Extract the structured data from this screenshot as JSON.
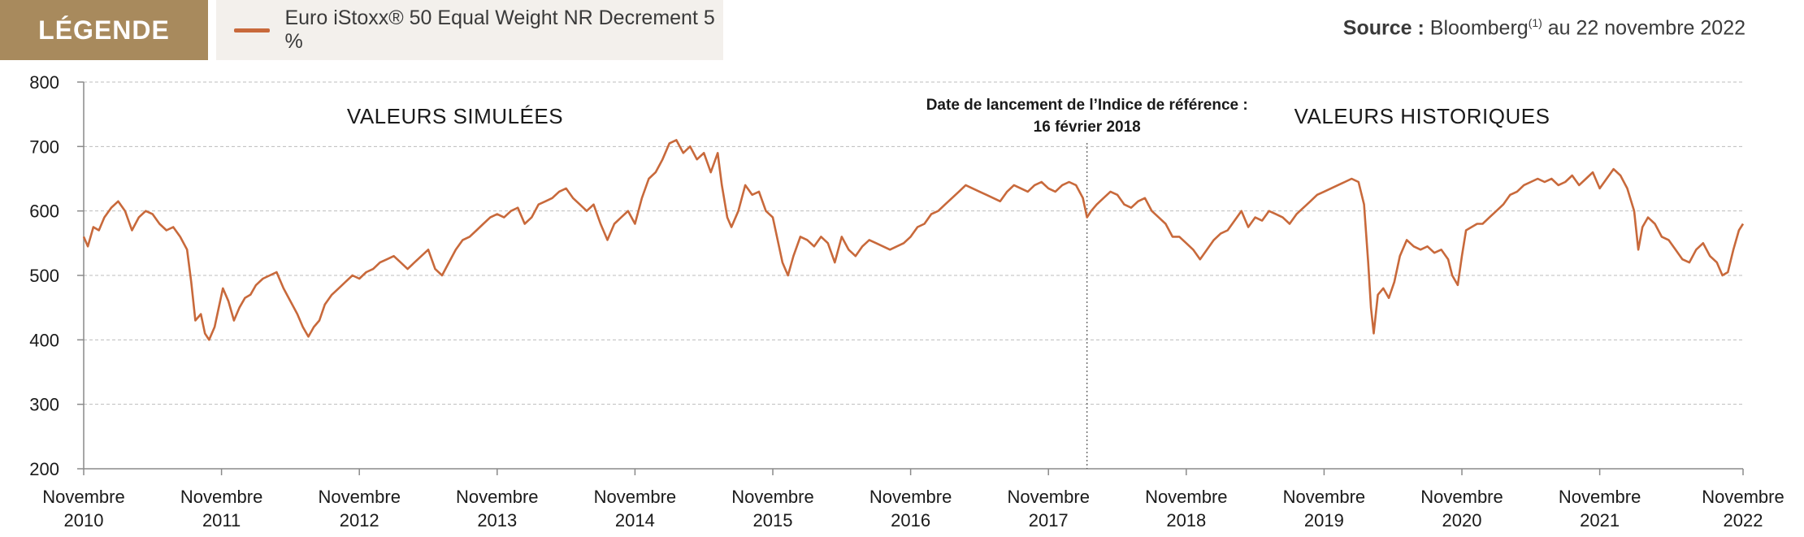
{
  "legend": {
    "tag": "LÉGENDE",
    "series_label": "Euro iStoxx® 50 Equal Weight NR Decrement 5 %",
    "series_color": "#c8693b",
    "tag_color": "#a88a5d"
  },
  "source": {
    "prefix": "Source :",
    "text": "Bloomberg",
    "footnote": "(1)",
    "suffix": " au 22 novembre 2022"
  },
  "chart_data": {
    "type": "line",
    "ylim": [
      200,
      800
    ],
    "yticks": [
      200,
      300,
      400,
      500,
      600,
      700,
      800
    ],
    "xlim": [
      2010.85,
      2022.89
    ],
    "xticks": [
      {
        "value": 2010.85,
        "line1": "Novembre",
        "line2": "2010"
      },
      {
        "value": 2011.85,
        "line1": "Novembre",
        "line2": "2011"
      },
      {
        "value": 2012.85,
        "line1": "Novembre",
        "line2": "2012"
      },
      {
        "value": 2013.85,
        "line1": "Novembre",
        "line2": "2013"
      },
      {
        "value": 2014.85,
        "line1": "Novembre",
        "line2": "2014"
      },
      {
        "value": 2015.85,
        "line1": "Novembre",
        "line2": "2015"
      },
      {
        "value": 2016.85,
        "line1": "Novembre",
        "line2": "2016"
      },
      {
        "value": 2017.85,
        "line1": "Novembre",
        "line2": "2017"
      },
      {
        "value": 2018.85,
        "line1": "Novembre",
        "line2": "2018"
      },
      {
        "value": 2019.85,
        "line1": "Novembre",
        "line2": "2019"
      },
      {
        "value": 2020.85,
        "line1": "Novembre",
        "line2": "2020"
      },
      {
        "value": 2021.85,
        "line1": "Novembre",
        "line2": "2021"
      },
      {
        "value": 2022.89,
        "line1": "Novembre",
        "line2": "2022"
      }
    ],
    "grid": true,
    "annotations": {
      "simulated": "VALEURS SIMULÉES",
      "historical": "VALEURS HISTORIQUES",
      "launch_line1": "Date de lancement de l’Indice de référence :",
      "launch_line2": "16 février 2018",
      "launch_x": 2018.13
    },
    "series": [
      {
        "name": "Euro iStoxx® 50 Equal Weight NR Decrement 5 %",
        "color": "#c8693b",
        "points": [
          [
            2010.85,
            560
          ],
          [
            2010.88,
            545
          ],
          [
            2010.92,
            575
          ],
          [
            2010.96,
            570
          ],
          [
            2011.0,
            590
          ],
          [
            2011.05,
            605
          ],
          [
            2011.1,
            615
          ],
          [
            2011.15,
            600
          ],
          [
            2011.2,
            570
          ],
          [
            2011.25,
            590
          ],
          [
            2011.3,
            600
          ],
          [
            2011.35,
            595
          ],
          [
            2011.4,
            580
          ],
          [
            2011.45,
            570
          ],
          [
            2011.5,
            575
          ],
          [
            2011.55,
            560
          ],
          [
            2011.6,
            540
          ],
          [
            2011.63,
            490
          ],
          [
            2011.66,
            430
          ],
          [
            2011.7,
            440
          ],
          [
            2011.73,
            410
          ],
          [
            2011.76,
            400
          ],
          [
            2011.8,
            420
          ],
          [
            2011.83,
            450
          ],
          [
            2011.86,
            480
          ],
          [
            2011.9,
            460
          ],
          [
            2011.94,
            430
          ],
          [
            2011.98,
            450
          ],
          [
            2012.02,
            465
          ],
          [
            2012.06,
            470
          ],
          [
            2012.1,
            485
          ],
          [
            2012.15,
            495
          ],
          [
            2012.2,
            500
          ],
          [
            2012.25,
            505
          ],
          [
            2012.3,
            480
          ],
          [
            2012.35,
            460
          ],
          [
            2012.4,
            440
          ],
          [
            2012.44,
            420
          ],
          [
            2012.48,
            405
          ],
          [
            2012.52,
            420
          ],
          [
            2012.56,
            430
          ],
          [
            2012.6,
            455
          ],
          [
            2012.65,
            470
          ],
          [
            2012.7,
            480
          ],
          [
            2012.75,
            490
          ],
          [
            2012.8,
            500
          ],
          [
            2012.85,
            495
          ],
          [
            2012.9,
            505
          ],
          [
            2012.95,
            510
          ],
          [
            2013.0,
            520
          ],
          [
            2013.05,
            525
          ],
          [
            2013.1,
            530
          ],
          [
            2013.15,
            520
          ],
          [
            2013.2,
            510
          ],
          [
            2013.25,
            520
          ],
          [
            2013.3,
            530
          ],
          [
            2013.35,
            540
          ],
          [
            2013.4,
            510
          ],
          [
            2013.45,
            500
          ],
          [
            2013.5,
            520
          ],
          [
            2013.55,
            540
          ],
          [
            2013.6,
            555
          ],
          [
            2013.65,
            560
          ],
          [
            2013.7,
            570
          ],
          [
            2013.75,
            580
          ],
          [
            2013.8,
            590
          ],
          [
            2013.85,
            595
          ],
          [
            2013.9,
            590
          ],
          [
            2013.95,
            600
          ],
          [
            2014.0,
            605
          ],
          [
            2014.05,
            580
          ],
          [
            2014.1,
            590
          ],
          [
            2014.15,
            610
          ],
          [
            2014.2,
            615
          ],
          [
            2014.25,
            620
          ],
          [
            2014.3,
            630
          ],
          [
            2014.35,
            635
          ],
          [
            2014.4,
            620
          ],
          [
            2014.45,
            610
          ],
          [
            2014.5,
            600
          ],
          [
            2014.55,
            610
          ],
          [
            2014.6,
            580
          ],
          [
            2014.65,
            555
          ],
          [
            2014.7,
            580
          ],
          [
            2014.75,
            590
          ],
          [
            2014.8,
            600
          ],
          [
            2014.85,
            580
          ],
          [
            2014.9,
            620
          ],
          [
            2014.95,
            650
          ],
          [
            2015.0,
            660
          ],
          [
            2015.05,
            680
          ],
          [
            2015.1,
            705
          ],
          [
            2015.15,
            710
          ],
          [
            2015.2,
            690
          ],
          [
            2015.25,
            700
          ],
          [
            2015.3,
            680
          ],
          [
            2015.35,
            690
          ],
          [
            2015.4,
            660
          ],
          [
            2015.45,
            690
          ],
          [
            2015.48,
            640
          ],
          [
            2015.52,
            590
          ],
          [
            2015.55,
            575
          ],
          [
            2015.6,
            600
          ],
          [
            2015.65,
            640
          ],
          [
            2015.7,
            625
          ],
          [
            2015.75,
            630
          ],
          [
            2015.8,
            600
          ],
          [
            2015.85,
            590
          ],
          [
            2015.88,
            560
          ],
          [
            2015.92,
            520
          ],
          [
            2015.96,
            500
          ],
          [
            2016.0,
            530
          ],
          [
            2016.05,
            560
          ],
          [
            2016.1,
            555
          ],
          [
            2016.15,
            545
          ],
          [
            2016.2,
            560
          ],
          [
            2016.25,
            550
          ],
          [
            2016.3,
            520
          ],
          [
            2016.35,
            560
          ],
          [
            2016.4,
            540
          ],
          [
            2016.45,
            530
          ],
          [
            2016.5,
            545
          ],
          [
            2016.55,
            555
          ],
          [
            2016.6,
            550
          ],
          [
            2016.65,
            545
          ],
          [
            2016.7,
            540
          ],
          [
            2016.75,
            545
          ],
          [
            2016.8,
            550
          ],
          [
            2016.85,
            560
          ],
          [
            2016.9,
            575
          ],
          [
            2016.95,
            580
          ],
          [
            2017.0,
            595
          ],
          [
            2017.05,
            600
          ],
          [
            2017.1,
            610
          ],
          [
            2017.15,
            620
          ],
          [
            2017.2,
            630
          ],
          [
            2017.25,
            640
          ],
          [
            2017.3,
            635
          ],
          [
            2017.35,
            630
          ],
          [
            2017.4,
            625
          ],
          [
            2017.45,
            620
          ],
          [
            2017.5,
            615
          ],
          [
            2017.55,
            630
          ],
          [
            2017.6,
            640
          ],
          [
            2017.65,
            635
          ],
          [
            2017.7,
            630
          ],
          [
            2017.75,
            640
          ],
          [
            2017.8,
            645
          ],
          [
            2017.85,
            635
          ],
          [
            2017.9,
            630
          ],
          [
            2017.95,
            640
          ],
          [
            2018.0,
            645
          ],
          [
            2018.05,
            640
          ],
          [
            2018.1,
            620
          ],
          [
            2018.13,
            590
          ],
          [
            2018.16,
            600
          ],
          [
            2018.2,
            610
          ],
          [
            2018.25,
            620
          ],
          [
            2018.3,
            630
          ],
          [
            2018.35,
            625
          ],
          [
            2018.4,
            610
          ],
          [
            2018.45,
            605
          ],
          [
            2018.5,
            615
          ],
          [
            2018.55,
            620
          ],
          [
            2018.6,
            600
          ],
          [
            2018.65,
            590
          ],
          [
            2018.7,
            580
          ],
          [
            2018.75,
            560
          ],
          [
            2018.8,
            560
          ],
          [
            2018.85,
            550
          ],
          [
            2018.9,
            540
          ],
          [
            2018.95,
            525
          ],
          [
            2019.0,
            540
          ],
          [
            2019.05,
            555
          ],
          [
            2019.1,
            565
          ],
          [
            2019.15,
            570
          ],
          [
            2019.2,
            585
          ],
          [
            2019.25,
            600
          ],
          [
            2019.3,
            575
          ],
          [
            2019.35,
            590
          ],
          [
            2019.4,
            585
          ],
          [
            2019.45,
            600
          ],
          [
            2019.5,
            595
          ],
          [
            2019.55,
            590
          ],
          [
            2019.6,
            580
          ],
          [
            2019.65,
            595
          ],
          [
            2019.7,
            605
          ],
          [
            2019.75,
            615
          ],
          [
            2019.8,
            625
          ],
          [
            2019.85,
            630
          ],
          [
            2019.9,
            635
          ],
          [
            2019.95,
            640
          ],
          [
            2020.0,
            645
          ],
          [
            2020.05,
            650
          ],
          [
            2020.1,
            645
          ],
          [
            2020.14,
            610
          ],
          [
            2020.17,
            520
          ],
          [
            2020.19,
            450
          ],
          [
            2020.21,
            410
          ],
          [
            2020.24,
            470
          ],
          [
            2020.28,
            480
          ],
          [
            2020.32,
            465
          ],
          [
            2020.36,
            490
          ],
          [
            2020.4,
            530
          ],
          [
            2020.45,
            555
          ],
          [
            2020.5,
            545
          ],
          [
            2020.55,
            540
          ],
          [
            2020.6,
            545
          ],
          [
            2020.65,
            535
          ],
          [
            2020.7,
            540
          ],
          [
            2020.75,
            525
          ],
          [
            2020.78,
            500
          ],
          [
            2020.82,
            485
          ],
          [
            2020.85,
            530
          ],
          [
            2020.88,
            570
          ],
          [
            2020.92,
            575
          ],
          [
            2020.96,
            580
          ],
          [
            2021.0,
            580
          ],
          [
            2021.05,
            590
          ],
          [
            2021.1,
            600
          ],
          [
            2021.15,
            610
          ],
          [
            2021.2,
            625
          ],
          [
            2021.25,
            630
          ],
          [
            2021.3,
            640
          ],
          [
            2021.35,
            645
          ],
          [
            2021.4,
            650
          ],
          [
            2021.45,
            645
          ],
          [
            2021.5,
            650
          ],
          [
            2021.55,
            640
          ],
          [
            2021.6,
            645
          ],
          [
            2021.65,
            655
          ],
          [
            2021.7,
            640
          ],
          [
            2021.75,
            650
          ],
          [
            2021.8,
            660
          ],
          [
            2021.85,
            635
          ],
          [
            2021.9,
            650
          ],
          [
            2021.95,
            665
          ],
          [
            2022.0,
            655
          ],
          [
            2022.05,
            635
          ],
          [
            2022.1,
            600
          ],
          [
            2022.13,
            540
          ],
          [
            2022.16,
            575
          ],
          [
            2022.2,
            590
          ],
          [
            2022.25,
            580
          ],
          [
            2022.3,
            560
          ],
          [
            2022.35,
            555
          ],
          [
            2022.4,
            540
          ],
          [
            2022.45,
            525
          ],
          [
            2022.5,
            520
          ],
          [
            2022.55,
            540
          ],
          [
            2022.6,
            550
          ],
          [
            2022.65,
            530
          ],
          [
            2022.7,
            520
          ],
          [
            2022.74,
            500
          ],
          [
            2022.78,
            505
          ],
          [
            2022.82,
            540
          ],
          [
            2022.86,
            570
          ],
          [
            2022.89,
            580
          ]
        ]
      }
    ]
  }
}
